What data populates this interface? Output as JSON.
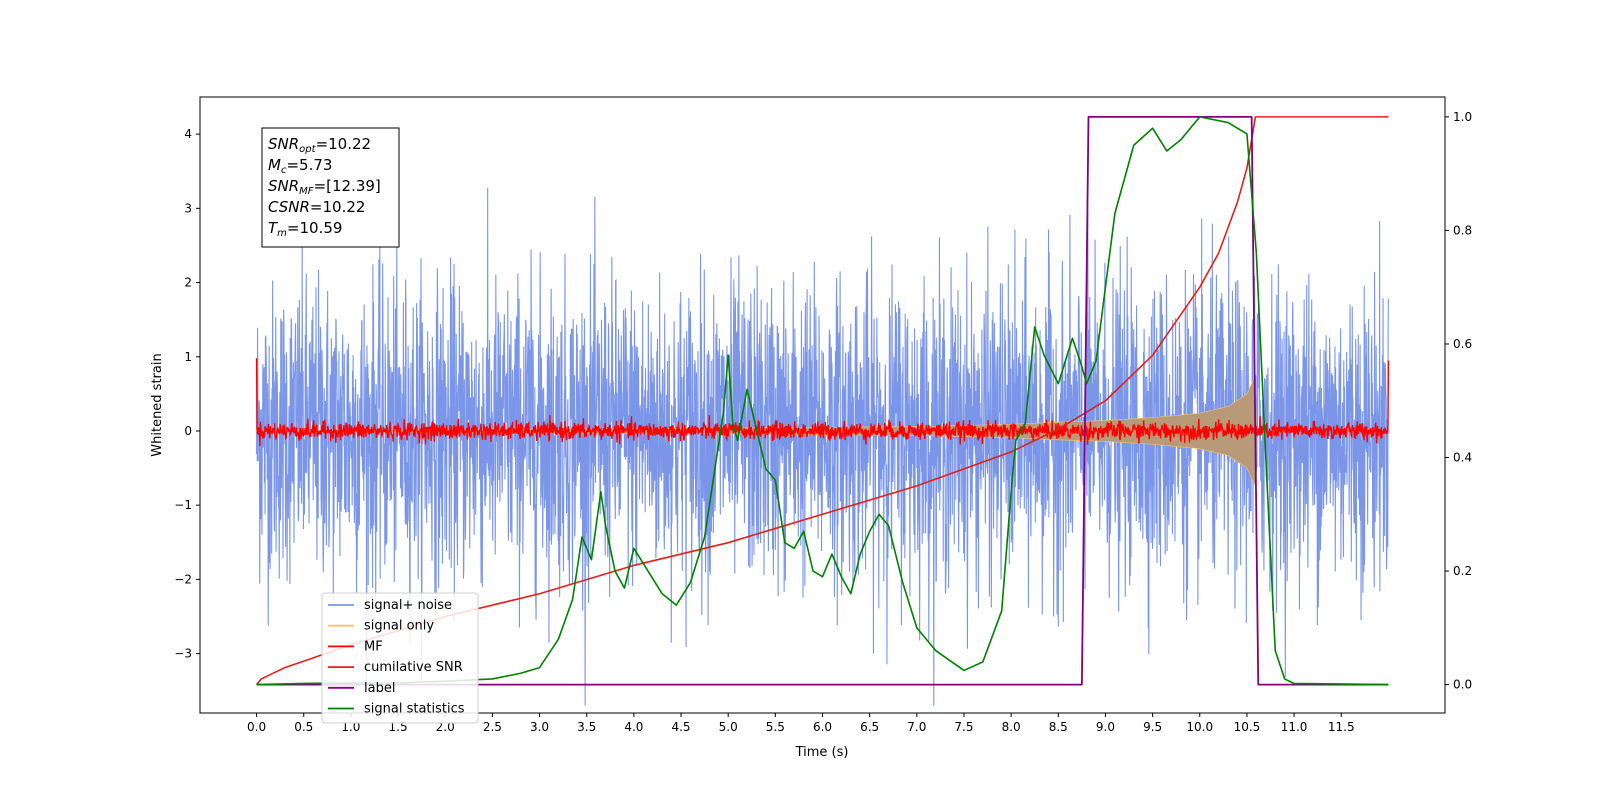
{
  "chart_data": {
    "type": "line",
    "xlabel": "Time (s)",
    "ylabel": "Whitened strain",
    "xlim": [
      -0.6,
      12.6
    ],
    "ylim_left": [
      -3.8,
      4.5
    ],
    "ylim_right": [
      -0.05,
      1.035
    ],
    "x_ticks": [
      "0.0",
      "0.5",
      "1.0",
      "1.5",
      "2.0",
      "2.5",
      "3.0",
      "3.5",
      "4.0",
      "4.5",
      "5.0",
      "5.5",
      "6.0",
      "6.5",
      "7.0",
      "7.5",
      "8.0",
      "8.5",
      "9.0",
      "9.5",
      "10.0",
      "10.5",
      "11.0",
      "11.5"
    ],
    "y_ticks_left": [
      "−3",
      "−2",
      "−1",
      "0",
      "1",
      "2",
      "3",
      "4"
    ],
    "y_ticks_right": [
      "0.0",
      "0.2",
      "0.4",
      "0.6",
      "0.8",
      "1.0"
    ],
    "grid": false,
    "legend_position": "lower-left",
    "colors": {
      "signal_noise": "#7b96e8",
      "signal_only": "#f5c36e",
      "signal_fill": "#b99a78",
      "mf": "#ff0000",
      "cumulative_snr": "#e0201a",
      "label": "#800080",
      "signal_statistics": "#008000"
    },
    "series": [
      {
        "name": "signal+ noise",
        "axis": "left",
        "kind": "noise",
        "x_range": [
          0.0,
          12.0
        ],
        "amplitude_std": 1.0,
        "max_abs": 3.7
      },
      {
        "name": "signal only",
        "axis": "left",
        "kind": "chirp",
        "envelope": {
          "x": [
            0.0,
            2.0,
            4.0,
            6.0,
            7.0,
            8.0,
            8.5,
            9.0,
            9.5,
            10.0,
            10.3,
            10.5,
            10.59,
            10.6
          ],
          "y": [
            0.01,
            0.02,
            0.03,
            0.05,
            0.06,
            0.09,
            0.12,
            0.14,
            0.18,
            0.24,
            0.33,
            0.5,
            0.75,
            0.0
          ]
        }
      },
      {
        "name": "MF",
        "axis": "left",
        "kind": "noise",
        "x_range": [
          0.0,
          12.0
        ],
        "amplitude_std": 0.06,
        "edges": {
          "start": 0.98,
          "end": 0.95
        }
      },
      {
        "name": "cumilative SNR",
        "axis": "right",
        "points": [
          [
            0.0,
            0.0
          ],
          [
            0.05,
            0.01
          ],
          [
            0.3,
            0.03
          ],
          [
            1.0,
            0.07
          ],
          [
            2.0,
            0.12
          ],
          [
            3.0,
            0.16
          ],
          [
            4.0,
            0.21
          ],
          [
            5.0,
            0.25
          ],
          [
            6.0,
            0.3
          ],
          [
            7.0,
            0.35
          ],
          [
            8.0,
            0.41
          ],
          [
            8.5,
            0.45
          ],
          [
            9.0,
            0.5
          ],
          [
            9.5,
            0.58
          ],
          [
            10.0,
            0.7
          ],
          [
            10.2,
            0.76
          ],
          [
            10.4,
            0.85
          ],
          [
            10.5,
            0.91
          ],
          [
            10.59,
            1.0
          ],
          [
            12.0,
            1.0
          ]
        ]
      },
      {
        "name": "label",
        "axis": "right",
        "points": [
          [
            0.0,
            0.0
          ],
          [
            8.75,
            0.0
          ],
          [
            8.82,
            1.0
          ],
          [
            10.55,
            1.0
          ],
          [
            10.62,
            0.0
          ],
          [
            12.0,
            0.0
          ]
        ]
      },
      {
        "name": "signal statistics",
        "axis": "right",
        "points": [
          [
            0.0,
            0.0
          ],
          [
            0.5,
            0.002
          ],
          [
            1.0,
            0.003
          ],
          [
            1.5,
            0.003
          ],
          [
            2.0,
            0.006
          ],
          [
            2.5,
            0.01
          ],
          [
            2.8,
            0.02
          ],
          [
            3.0,
            0.03
          ],
          [
            3.2,
            0.08
          ],
          [
            3.35,
            0.15
          ],
          [
            3.45,
            0.26
          ],
          [
            3.55,
            0.22
          ],
          [
            3.65,
            0.34
          ],
          [
            3.7,
            0.28
          ],
          [
            3.8,
            0.2
          ],
          [
            3.9,
            0.17
          ],
          [
            4.0,
            0.24
          ],
          [
            4.15,
            0.2
          ],
          [
            4.3,
            0.16
          ],
          [
            4.45,
            0.14
          ],
          [
            4.6,
            0.18
          ],
          [
            4.75,
            0.26
          ],
          [
            4.85,
            0.37
          ],
          [
            4.95,
            0.48
          ],
          [
            5.0,
            0.58
          ],
          [
            5.05,
            0.46
          ],
          [
            5.1,
            0.43
          ],
          [
            5.2,
            0.52
          ],
          [
            5.3,
            0.45
          ],
          [
            5.4,
            0.38
          ],
          [
            5.5,
            0.36
          ],
          [
            5.6,
            0.25
          ],
          [
            5.7,
            0.24
          ],
          [
            5.8,
            0.27
          ],
          [
            5.9,
            0.2
          ],
          [
            6.0,
            0.19
          ],
          [
            6.1,
            0.23
          ],
          [
            6.2,
            0.19
          ],
          [
            6.3,
            0.16
          ],
          [
            6.4,
            0.23
          ],
          [
            6.5,
            0.27
          ],
          [
            6.6,
            0.3
          ],
          [
            6.7,
            0.28
          ],
          [
            6.85,
            0.18
          ],
          [
            7.0,
            0.1
          ],
          [
            7.2,
            0.06
          ],
          [
            7.5,
            0.025
          ],
          [
            7.7,
            0.04
          ],
          [
            7.9,
            0.13
          ],
          [
            8.0,
            0.34
          ],
          [
            8.05,
            0.43
          ],
          [
            8.15,
            0.46
          ],
          [
            8.25,
            0.63
          ],
          [
            8.35,
            0.58
          ],
          [
            8.5,
            0.53
          ],
          [
            8.65,
            0.61
          ],
          [
            8.75,
            0.56
          ],
          [
            8.8,
            0.53
          ],
          [
            8.9,
            0.57
          ],
          [
            9.0,
            0.7
          ],
          [
            9.1,
            0.83
          ],
          [
            9.3,
            0.95
          ],
          [
            9.5,
            0.98
          ],
          [
            9.65,
            0.94
          ],
          [
            9.8,
            0.96
          ],
          [
            10.0,
            1.0
          ],
          [
            10.3,
            0.99
          ],
          [
            10.5,
            0.97
          ],
          [
            10.6,
            0.76
          ],
          [
            10.7,
            0.4
          ],
          [
            10.8,
            0.06
          ],
          [
            10.9,
            0.01
          ],
          [
            11.0,
            0.002
          ],
          [
            12.0,
            0.0
          ]
        ]
      }
    ],
    "annotation_box": [
      {
        "name": "SNR",
        "sub": "opt",
        "value": "=10.22"
      },
      {
        "name": "M",
        "sub": "c",
        "value": "=5.73"
      },
      {
        "name": "SNR",
        "sub": "MF",
        "value": "=[12.39]"
      },
      {
        "name": "CSNR",
        "sub": "",
        "value": "=10.22"
      },
      {
        "name": "T",
        "sub": "m",
        "value": "=10.59"
      }
    ]
  }
}
